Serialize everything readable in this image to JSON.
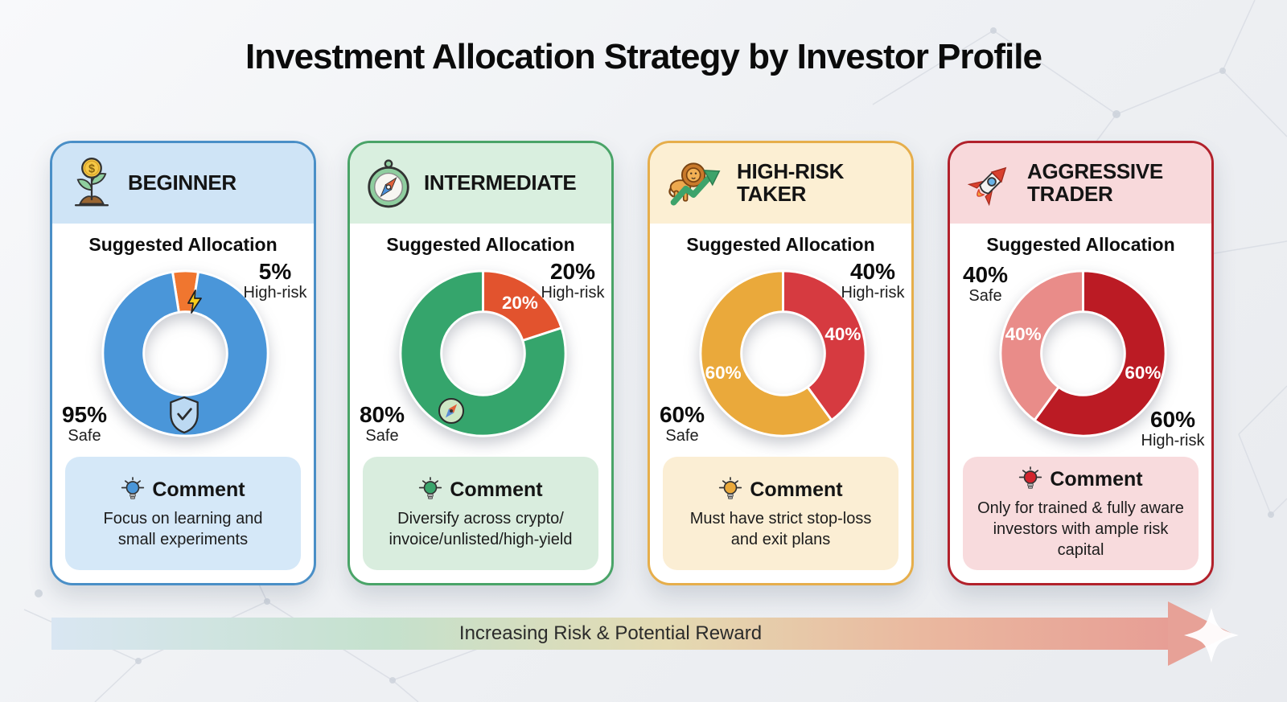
{
  "title": "Investment Allocation Strategy by Investor Profile",
  "cards": [
    {
      "title": "BEGINNER",
      "icon": "money-plant-icon",
      "section_title": "Suggested Allocation",
      "labels": {
        "risk_value": "5%",
        "risk_caption": "High-risk",
        "safe_value": "95%",
        "safe_caption": "Safe"
      },
      "comment": {
        "title": "Comment",
        "text": "Focus on learning and small experiments"
      },
      "colors": {
        "border": "#4a8fc7",
        "header_bg": "#cfe4f6",
        "comment_bg": "#d5e8f8",
        "bulb": "#4a96d9"
      }
    },
    {
      "title": "INTERMEDIATE",
      "icon": "compass-icon",
      "section_title": "Suggested Allocation",
      "labels": {
        "risk_value": "20%",
        "risk_caption": "High-risk",
        "safe_value": "80%",
        "safe_caption": "Safe"
      },
      "comment": {
        "title": "Comment",
        "text": "Diversify across crypto/invoice/unlisted/high-yield"
      },
      "colors": {
        "border": "#4aa468",
        "header_bg": "#d9efdf",
        "comment_bg": "#d9edde",
        "bulb": "#3aa56c"
      }
    },
    {
      "title": "HIGH-RISK TAKER",
      "icon": "lion-growth-arrow-icon",
      "section_title": "Suggested Allocation",
      "labels": {
        "risk_value": "40%",
        "risk_caption": "High-risk",
        "safe_value": "60%",
        "safe_caption": "Safe"
      },
      "comment": {
        "title": "Comment",
        "text": "Must have strict stop-loss and exit plans"
      },
      "colors": {
        "border": "#e6ae4b",
        "header_bg": "#fcefd3",
        "comment_bg": "#fbeed4",
        "bulb": "#eaa93b"
      }
    },
    {
      "title": "AGGRESSIVE TRADER",
      "icon": "rocket-icon",
      "section_title": "Suggested Allocation",
      "labels": {
        "risk_value": "60%",
        "risk_caption": "High-risk",
        "safe_value": "40%",
        "safe_caption": "Safe"
      },
      "comment": {
        "title": "Comment",
        "text": "Only for trained & fully aware investors with ample risk capital"
      },
      "colors": {
        "border": "#b2212b",
        "header_bg": "#f8d9db",
        "comment_bg": "#f8dbdd",
        "bulb": "#d2242d"
      }
    }
  ],
  "footer_arrow": {
    "label": "Increasing Risk & Potential Reward"
  },
  "chart_data": [
    {
      "type": "pie",
      "donut": true,
      "unit": "%",
      "title": "Beginner suggested allocation",
      "labels": [
        "High-risk",
        "Safe"
      ],
      "values": [
        5,
        95
      ],
      "colors": [
        "#f0762f",
        "#4a96d9"
      ],
      "start_angle": -9,
      "slice_labels": [
        "",
        ""
      ],
      "legend": "none"
    },
    {
      "type": "pie",
      "donut": true,
      "unit": "%",
      "title": "Intermediate suggested allocation",
      "labels": [
        "High-risk",
        "Safe"
      ],
      "values": [
        20,
        80
      ],
      "colors": [
        "#e2532e",
        "#35a56c"
      ],
      "start_angle": 0,
      "slice_labels": [
        "20%",
        ""
      ],
      "legend": "none"
    },
    {
      "type": "pie",
      "donut": true,
      "unit": "%",
      "title": "High-Risk Taker suggested allocation",
      "labels": [
        "High-risk",
        "Safe"
      ],
      "values": [
        40,
        60
      ],
      "colors": [
        "#d63a40",
        "#eaa93b"
      ],
      "start_angle": 0,
      "slice_labels": [
        "40%",
        "60%"
      ],
      "legend": "none"
    },
    {
      "type": "pie",
      "donut": true,
      "unit": "%",
      "title": "Aggressive Trader suggested allocation",
      "labels": [
        "High-risk",
        "Safe"
      ],
      "values": [
        60,
        40
      ],
      "colors": [
        "#bb1b24",
        "#e98c89"
      ],
      "start_angle": 0,
      "slice_labels": [
        "60%",
        "40%"
      ],
      "legend": "none"
    }
  ]
}
